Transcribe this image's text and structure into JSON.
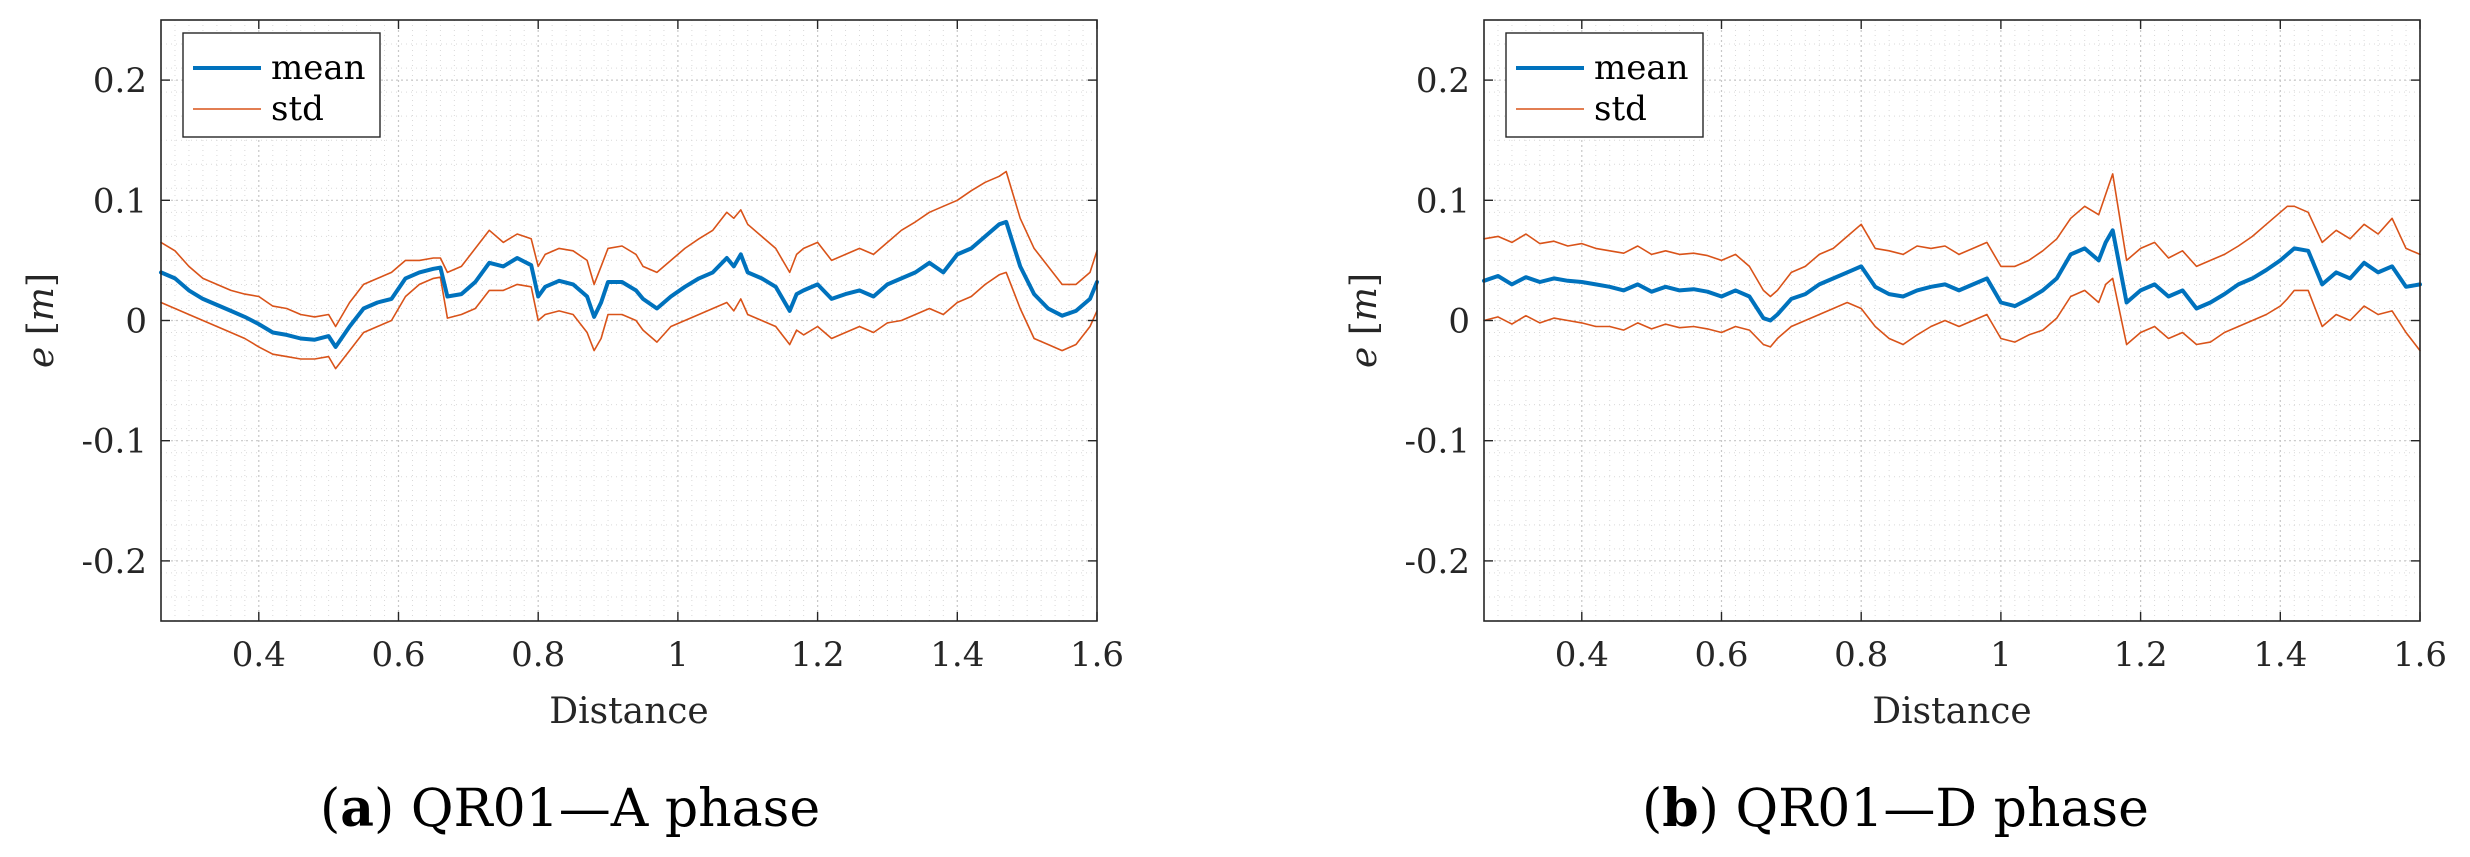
{
  "chart_data": [
    {
      "type": "line",
      "panel_label": "a",
      "caption_text": "QR01—A phase",
      "xlabel": "Distance",
      "ylabel_var": "e",
      "ylabel_unit": "m",
      "xlim": [
        0.26,
        1.6
      ],
      "ylim": [
        -0.25,
        0.25
      ],
      "xticks": [
        0.4,
        0.6,
        0.8,
        1,
        1.2,
        1.4,
        1.6
      ],
      "xtick_labels": [
        "0.4",
        "0.6",
        "0.8",
        "1",
        "1.2",
        "1.4",
        "1.6"
      ],
      "yticks": [
        0.2,
        0.1,
        0,
        -0.1,
        -0.2
      ],
      "ytick_labels": [
        "0.2",
        "0.1",
        "0",
        "-0.1",
        "-0.2"
      ],
      "grid": true,
      "legend": {
        "position": "top-left",
        "entries": [
          "mean",
          "std"
        ]
      },
      "x": [
        0.26,
        0.28,
        0.3,
        0.32,
        0.34,
        0.36,
        0.38,
        0.4,
        0.42,
        0.44,
        0.46,
        0.48,
        0.5,
        0.51,
        0.53,
        0.55,
        0.57,
        0.59,
        0.61,
        0.63,
        0.65,
        0.66,
        0.67,
        0.69,
        0.71,
        0.73,
        0.75,
        0.77,
        0.79,
        0.8,
        0.81,
        0.83,
        0.85,
        0.87,
        0.88,
        0.89,
        0.9,
        0.92,
        0.94,
        0.95,
        0.97,
        0.99,
        1.01,
        1.03,
        1.05,
        1.07,
        1.08,
        1.09,
        1.1,
        1.12,
        1.14,
        1.16,
        1.17,
        1.18,
        1.2,
        1.22,
        1.24,
        1.26,
        1.28,
        1.3,
        1.32,
        1.34,
        1.36,
        1.38,
        1.4,
        1.42,
        1.44,
        1.46,
        1.47,
        1.49,
        1.51,
        1.53,
        1.55,
        1.57,
        1.59,
        1.6
      ],
      "series": [
        {
          "name": "mean",
          "role": "mean",
          "color": "#0072bd",
          "values": [
            0.04,
            0.035,
            0.025,
            0.018,
            0.013,
            0.008,
            0.003,
            -0.003,
            -0.01,
            -0.012,
            -0.015,
            -0.016,
            -0.013,
            -0.022,
            -0.005,
            0.01,
            0.015,
            0.018,
            0.035,
            0.04,
            0.043,
            0.044,
            0.02,
            0.022,
            0.032,
            0.048,
            0.045,
            0.052,
            0.046,
            0.02,
            0.028,
            0.033,
            0.03,
            0.02,
            0.003,
            0.015,
            0.032,
            0.032,
            0.025,
            0.018,
            0.01,
            0.02,
            0.028,
            0.035,
            0.04,
            0.052,
            0.045,
            0.055,
            0.04,
            0.035,
            0.028,
            0.008,
            0.022,
            0.025,
            0.03,
            0.018,
            0.022,
            0.025,
            0.02,
            0.03,
            0.035,
            0.04,
            0.048,
            0.04,
            0.055,
            0.06,
            0.07,
            0.08,
            0.082,
            0.045,
            0.022,
            0.01,
            0.004,
            0.008,
            0.018,
            0.032
          ]
        },
        {
          "name": "std",
          "role": "std-upper",
          "color": "#d95319",
          "values": [
            0.065,
            0.058,
            0.045,
            0.035,
            0.03,
            0.025,
            0.022,
            0.02,
            0.012,
            0.01,
            0.005,
            0.003,
            0.005,
            -0.005,
            0.015,
            0.03,
            0.035,
            0.04,
            0.05,
            0.05,
            0.052,
            0.052,
            0.04,
            0.045,
            0.06,
            0.075,
            0.065,
            0.072,
            0.068,
            0.045,
            0.055,
            0.06,
            0.058,
            0.05,
            0.03,
            0.045,
            0.06,
            0.062,
            0.055,
            0.045,
            0.04,
            0.05,
            0.06,
            0.068,
            0.075,
            0.09,
            0.085,
            0.092,
            0.08,
            0.07,
            0.06,
            0.04,
            0.055,
            0.06,
            0.065,
            0.05,
            0.055,
            0.06,
            0.055,
            0.065,
            0.075,
            0.082,
            0.09,
            0.095,
            0.1,
            0.108,
            0.115,
            0.12,
            0.124,
            0.085,
            0.06,
            0.045,
            0.03,
            0.03,
            0.04,
            0.058
          ]
        },
        {
          "name": "std",
          "role": "std-lower",
          "color": "#d95319",
          "values": [
            0.015,
            0.01,
            0.005,
            0.0,
            -0.005,
            -0.01,
            -0.015,
            -0.022,
            -0.028,
            -0.03,
            -0.032,
            -0.032,
            -0.03,
            -0.04,
            -0.025,
            -0.01,
            -0.005,
            0.0,
            0.02,
            0.03,
            0.035,
            0.036,
            0.002,
            0.005,
            0.01,
            0.025,
            0.025,
            0.03,
            0.028,
            0.0,
            0.005,
            0.008,
            0.005,
            -0.01,
            -0.025,
            -0.015,
            0.005,
            0.005,
            0.0,
            -0.008,
            -0.018,
            -0.005,
            0.0,
            0.005,
            0.01,
            0.015,
            0.008,
            0.018,
            0.005,
            0.0,
            -0.005,
            -0.02,
            -0.008,
            -0.012,
            -0.005,
            -0.015,
            -0.01,
            -0.005,
            -0.01,
            -0.002,
            0.0,
            0.005,
            0.01,
            0.005,
            0.015,
            0.02,
            0.03,
            0.038,
            0.04,
            0.01,
            -0.015,
            -0.02,
            -0.025,
            -0.02,
            -0.005,
            0.008
          ]
        }
      ]
    },
    {
      "type": "line",
      "panel_label": "b",
      "caption_text": "QR01—D phase",
      "xlabel": "Distance",
      "ylabel_var": "e",
      "ylabel_unit": "m",
      "xlim": [
        0.26,
        1.6
      ],
      "ylim": [
        -0.25,
        0.25
      ],
      "xticks": [
        0.4,
        0.6,
        0.8,
        1,
        1.2,
        1.4,
        1.6
      ],
      "xtick_labels": [
        "0.4",
        "0.6",
        "0.8",
        "1",
        "1.2",
        "1.4",
        "1.6"
      ],
      "yticks": [
        0.2,
        0.1,
        0,
        -0.1,
        -0.2
      ],
      "ytick_labels": [
        "0.2",
        "0.1",
        "0",
        "-0.1",
        "-0.2"
      ],
      "grid": true,
      "legend": {
        "position": "top-left",
        "entries": [
          "mean",
          "std"
        ]
      },
      "x": [
        0.26,
        0.28,
        0.3,
        0.32,
        0.34,
        0.36,
        0.38,
        0.4,
        0.42,
        0.44,
        0.46,
        0.48,
        0.5,
        0.52,
        0.54,
        0.56,
        0.58,
        0.6,
        0.62,
        0.64,
        0.66,
        0.67,
        0.68,
        0.7,
        0.72,
        0.74,
        0.76,
        0.78,
        0.8,
        0.82,
        0.84,
        0.86,
        0.88,
        0.9,
        0.92,
        0.94,
        0.96,
        0.98,
        1.0,
        1.02,
        1.04,
        1.06,
        1.08,
        1.1,
        1.12,
        1.14,
        1.15,
        1.16,
        1.18,
        1.2,
        1.22,
        1.24,
        1.26,
        1.28,
        1.3,
        1.32,
        1.34,
        1.36,
        1.38,
        1.4,
        1.41,
        1.42,
        1.44,
        1.46,
        1.48,
        1.5,
        1.52,
        1.54,
        1.56,
        1.58,
        1.6
      ],
      "series": [
        {
          "name": "mean",
          "role": "mean",
          "color": "#0072bd",
          "values": [
            0.033,
            0.037,
            0.03,
            0.036,
            0.032,
            0.035,
            0.033,
            0.032,
            0.03,
            0.028,
            0.025,
            0.03,
            0.024,
            0.028,
            0.025,
            0.026,
            0.024,
            0.02,
            0.025,
            0.02,
            0.002,
            0.0,
            0.005,
            0.018,
            0.022,
            0.03,
            0.035,
            0.04,
            0.045,
            0.028,
            0.022,
            0.02,
            0.025,
            0.028,
            0.03,
            0.025,
            0.03,
            0.035,
            0.015,
            0.012,
            0.018,
            0.025,
            0.035,
            0.055,
            0.06,
            0.05,
            0.065,
            0.075,
            0.015,
            0.025,
            0.03,
            0.02,
            0.025,
            0.01,
            0.015,
            0.022,
            0.03,
            0.035,
            0.042,
            0.05,
            0.055,
            0.06,
            0.058,
            0.03,
            0.04,
            0.035,
            0.048,
            0.04,
            0.045,
            0.028,
            0.03
          ]
        },
        {
          "name": "std",
          "role": "std-upper",
          "color": "#d95319",
          "values": [
            0.068,
            0.07,
            0.065,
            0.072,
            0.064,
            0.066,
            0.062,
            0.064,
            0.06,
            0.058,
            0.056,
            0.062,
            0.055,
            0.058,
            0.055,
            0.056,
            0.054,
            0.05,
            0.055,
            0.045,
            0.025,
            0.02,
            0.025,
            0.04,
            0.045,
            0.055,
            0.06,
            0.07,
            0.08,
            0.06,
            0.058,
            0.055,
            0.062,
            0.06,
            0.062,
            0.055,
            0.06,
            0.065,
            0.045,
            0.045,
            0.05,
            0.058,
            0.068,
            0.085,
            0.095,
            0.088,
            0.105,
            0.122,
            0.05,
            0.06,
            0.065,
            0.052,
            0.058,
            0.045,
            0.05,
            0.055,
            0.062,
            0.07,
            0.08,
            0.09,
            0.095,
            0.095,
            0.09,
            0.065,
            0.075,
            0.068,
            0.08,
            0.072,
            0.085,
            0.06,
            0.055
          ]
        },
        {
          "name": "std",
          "role": "std-lower",
          "color": "#d95319",
          "values": [
            0.0,
            0.003,
            -0.003,
            0.004,
            -0.002,
            0.002,
            0.0,
            -0.002,
            -0.005,
            -0.005,
            -0.008,
            -0.002,
            -0.007,
            -0.003,
            -0.006,
            -0.005,
            -0.007,
            -0.01,
            -0.005,
            -0.008,
            -0.02,
            -0.022,
            -0.015,
            -0.005,
            0.0,
            0.005,
            0.01,
            0.015,
            0.01,
            -0.005,
            -0.015,
            -0.02,
            -0.012,
            -0.005,
            0.0,
            -0.005,
            0.0,
            0.005,
            -0.015,
            -0.018,
            -0.012,
            -0.008,
            0.002,
            0.02,
            0.025,
            0.015,
            0.03,
            0.035,
            -0.02,
            -0.01,
            -0.005,
            -0.015,
            -0.01,
            -0.02,
            -0.018,
            -0.01,
            -0.005,
            0.0,
            0.005,
            0.012,
            0.018,
            0.025,
            0.025,
            -0.005,
            0.005,
            0.0,
            0.012,
            0.005,
            0.008,
            -0.01,
            -0.025
          ]
        }
      ]
    }
  ]
}
